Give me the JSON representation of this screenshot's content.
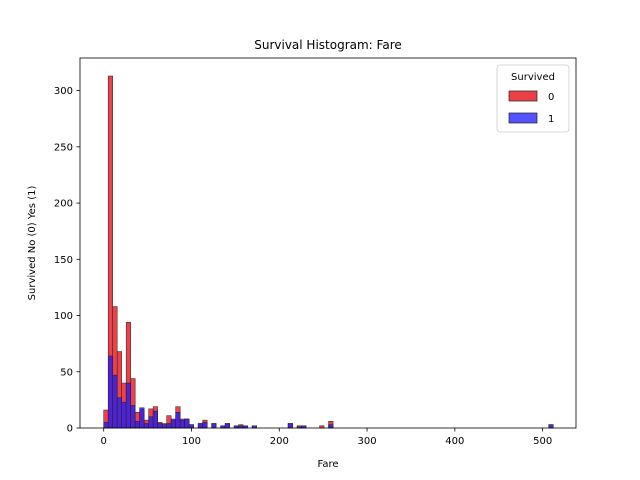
{
  "chart_data": {
    "type": "bar",
    "title": "Survival Histogram: Fare",
    "xlabel": "Fare",
    "ylabel": "Survived No (0) Yes (1)",
    "xlim": [
      -27,
      538
    ],
    "ylim": [
      0,
      329
    ],
    "xticks": [
      0,
      100,
      200,
      300,
      400,
      500
    ],
    "yticks": [
      0,
      50,
      100,
      150,
      200,
      250,
      300
    ],
    "bin_width": 5.12,
    "stacked": false,
    "legend": {
      "title": "Survived",
      "position": "top-right",
      "entries": [
        {
          "label": "0",
          "color": "#e8000b"
        },
        {
          "label": "1",
          "color": "#1a1aff"
        }
      ]
    },
    "bins": [
      {
        "x": 0.0,
        "s0": 16,
        "s1": 5
      },
      {
        "x": 5.12,
        "s0": 313,
        "s1": 64
      },
      {
        "x": 10.24,
        "s0": 108,
        "s1": 47
      },
      {
        "x": 15.37,
        "s0": 68,
        "s1": 27
      },
      {
        "x": 20.49,
        "s0": 40,
        "s1": 23
      },
      {
        "x": 25.61,
        "s0": 94,
        "s1": 40
      },
      {
        "x": 30.74,
        "s0": 44,
        "s1": 20
      },
      {
        "x": 35.86,
        "s0": 14,
        "s1": 6
      },
      {
        "x": 40.98,
        "s0": 17,
        "s1": 18
      },
      {
        "x": 46.11,
        "s0": 7,
        "s1": 4
      },
      {
        "x": 51.23,
        "s0": 17,
        "s1": 10
      },
      {
        "x": 56.35,
        "s0": 19,
        "s1": 15
      },
      {
        "x": 61.48,
        "s0": 5,
        "s1": 4
      },
      {
        "x": 66.6,
        "s0": 4,
        "s1": 3
      },
      {
        "x": 71.72,
        "s0": 11,
        "s1": 4
      },
      {
        "x": 76.84,
        "s0": 7,
        "s1": 8
      },
      {
        "x": 81.97,
        "s0": 19,
        "s1": 14
      },
      {
        "x": 87.09,
        "s0": 8,
        "s1": 7
      },
      {
        "x": 92.21,
        "s0": 8,
        "s1": 8
      },
      {
        "x": 97.34,
        "s0": 3,
        "s1": 3
      },
      {
        "x": 102.46,
        "s0": 0,
        "s1": 0
      },
      {
        "x": 107.58,
        "s0": 4,
        "s1": 4
      },
      {
        "x": 112.71,
        "s0": 7,
        "s1": 5
      },
      {
        "x": 117.83,
        "s0": 0,
        "s1": 0
      },
      {
        "x": 122.95,
        "s0": 4,
        "s1": 4
      },
      {
        "x": 128.08,
        "s0": 0,
        "s1": 0
      },
      {
        "x": 133.2,
        "s0": 2,
        "s1": 2
      },
      {
        "x": 138.32,
        "s0": 4,
        "s1": 4
      },
      {
        "x": 143.45,
        "s0": 0,
        "s1": 0
      },
      {
        "x": 148.57,
        "s0": 2,
        "s1": 2
      },
      {
        "x": 153.69,
        "s0": 3,
        "s1": 2
      },
      {
        "x": 158.82,
        "s0": 2,
        "s1": 2
      },
      {
        "x": 163.94,
        "s0": 0,
        "s1": 0
      },
      {
        "x": 169.06,
        "s0": 2,
        "s1": 2
      },
      {
        "x": 210.04,
        "s0": 4,
        "s1": 4
      },
      {
        "x": 220.28,
        "s0": 2,
        "s1": 1
      },
      {
        "x": 225.41,
        "s0": 2,
        "s1": 2
      },
      {
        "x": 245.9,
        "s0": 2,
        "s1": 0
      },
      {
        "x": 256.14,
        "s0": 6,
        "s1": 3
      },
      {
        "x": 506.93,
        "s0": 3,
        "s1": 3
      }
    ]
  }
}
